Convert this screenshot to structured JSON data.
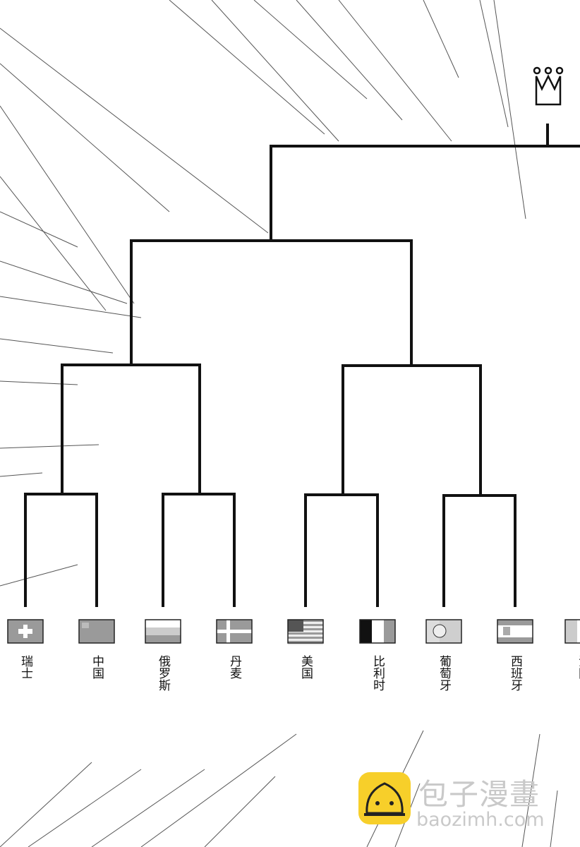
{
  "bracket": {
    "teams": [
      {
        "name": "瑞士",
        "flag": "swiss-flag-icon"
      },
      {
        "name": "中国",
        "flag": "china-flag-icon"
      },
      {
        "name": "俄罗斯",
        "flag": "russia-flag-icon"
      },
      {
        "name": "丹麦",
        "flag": "denmark-flag-icon"
      },
      {
        "name": "美国",
        "flag": "usa-flag-icon"
      },
      {
        "name": "比利时",
        "flag": "belgium-flag-icon"
      },
      {
        "name": "葡萄牙",
        "flag": "portugal-flag-icon"
      },
      {
        "name": "西班牙",
        "flag": "spain-flag-icon"
      },
      {
        "name": "法国",
        "flag": "france-flag-icon"
      }
    ],
    "trophy_icon": "crown-icon"
  },
  "watermark": {
    "title": "包子漫畫",
    "url": "baozimh.com",
    "accent": "#f7cf2a"
  }
}
